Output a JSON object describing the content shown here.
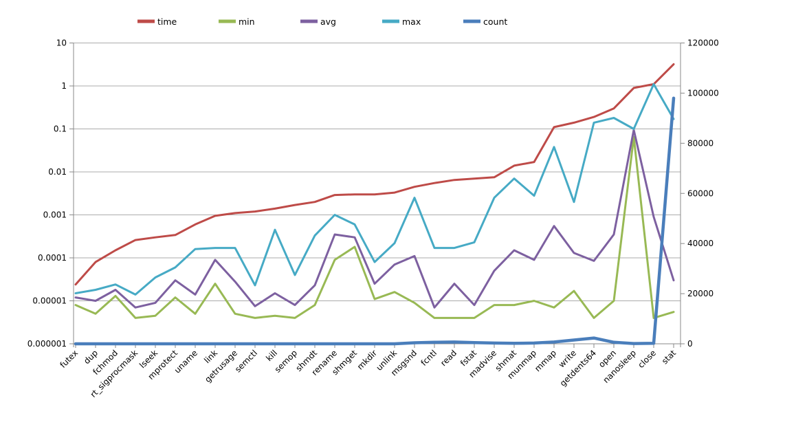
{
  "chart_data": {
    "type": "line",
    "title": "",
    "xlabel": "",
    "ylabel_left": "",
    "ylabel_right": "",
    "grid": true,
    "legend_position": "top",
    "categories": [
      "futex",
      "dup",
      "fchmod",
      "rt_sigprocmask",
      "lseek",
      "mprotect",
      "uname",
      "link",
      "getrusage",
      "semctl",
      "kill",
      "semop",
      "shmdt",
      "rename",
      "shmget",
      "mkdir",
      "unlink",
      "msgsnd",
      "fcntl",
      "read",
      "fstat",
      "madvise",
      "shmat",
      "munmap",
      "mmap",
      "write",
      "getdents64",
      "open",
      "nanosleep",
      "close",
      "stat"
    ],
    "series": [
      {
        "name": "time",
        "axis": "left",
        "color": "#BE4B48",
        "values": [
          2.4e-05,
          8e-05,
          0.00015,
          0.00026,
          0.0003,
          0.00034,
          0.0006,
          0.00095,
          0.0011,
          0.0012,
          0.0014,
          0.0017,
          0.002,
          0.0029,
          0.003,
          0.003,
          0.0033,
          0.0045,
          0.0055,
          0.0065,
          0.007,
          0.0075,
          0.014,
          0.017,
          0.11,
          0.14,
          0.19,
          0.3,
          0.9,
          1.1,
          3.2
        ]
      },
      {
        "name": "min",
        "axis": "left",
        "color": "#98B954",
        "values": [
          8e-06,
          5e-06,
          1.3e-05,
          4e-06,
          4.5e-06,
          1.2e-05,
          5e-06,
          2.5e-05,
          5e-06,
          4e-06,
          4.5e-06,
          4e-06,
          8e-06,
          9e-05,
          0.00018,
          1.1e-05,
          1.6e-05,
          9e-06,
          4e-06,
          4e-06,
          4e-06,
          8e-06,
          8e-06,
          1e-05,
          7e-06,
          1.7e-05,
          4e-06,
          1e-05,
          0.065,
          4e-06,
          5.5e-06
        ]
      },
      {
        "name": "avg",
        "axis": "left",
        "color": "#7D60A0",
        "values": [
          1.2e-05,
          1e-05,
          1.8e-05,
          7e-06,
          9e-06,
          3e-05,
          1.4e-05,
          9e-05,
          2.8e-05,
          7.5e-06,
          1.5e-05,
          8e-06,
          2.3e-05,
          0.00035,
          0.0003,
          2.5e-05,
          7e-05,
          0.00011,
          7e-06,
          2.5e-05,
          8e-06,
          5e-05,
          0.00015,
          9e-05,
          0.00055,
          0.00013,
          8.5e-05,
          0.00035,
          0.095,
          0.0009,
          3e-05
        ]
      },
      {
        "name": "max",
        "axis": "left",
        "color": "#46AAC5",
        "values": [
          1.5e-05,
          1.8e-05,
          2.4e-05,
          1.4e-05,
          3.5e-05,
          6e-05,
          0.00016,
          0.00017,
          0.00017,
          2.3e-05,
          0.00045,
          4e-05,
          0.00033,
          0.001,
          0.0006,
          8e-05,
          0.00022,
          0.0025,
          0.00017,
          0.00017,
          0.00023,
          0.0025,
          0.007,
          0.0028,
          0.038,
          0.002,
          0.14,
          0.18,
          0.1,
          1.1,
          0.17
        ]
      },
      {
        "name": "count",
        "axis": "right",
        "color": "#4A7EBB",
        "values": [
          0,
          0,
          0,
          0,
          0,
          0,
          0,
          0,
          0,
          0,
          0,
          0,
          0,
          0,
          0,
          0,
          0,
          400,
          600,
          700,
          500,
          300,
          200,
          300,
          700,
          1500,
          2300,
          600,
          100,
          200,
          98000
        ]
      }
    ],
    "left_axis": {
      "scale": "log",
      "min": 1e-06,
      "max": 10,
      "tick_labels": [
        "10",
        "1",
        "0.1",
        "0.01",
        "0.001",
        "0.0001",
        "0.00001",
        "0.000001"
      ]
    },
    "right_axis": {
      "scale": "linear",
      "min": 0,
      "max": 120000,
      "tick_labels": [
        "120000",
        "100000",
        "80000",
        "60000",
        "40000",
        "20000",
        "0"
      ]
    }
  },
  "colors": {
    "background": "#ffffff",
    "grid": "#ABABAB",
    "axis": "#898989",
    "text": "#000000"
  }
}
